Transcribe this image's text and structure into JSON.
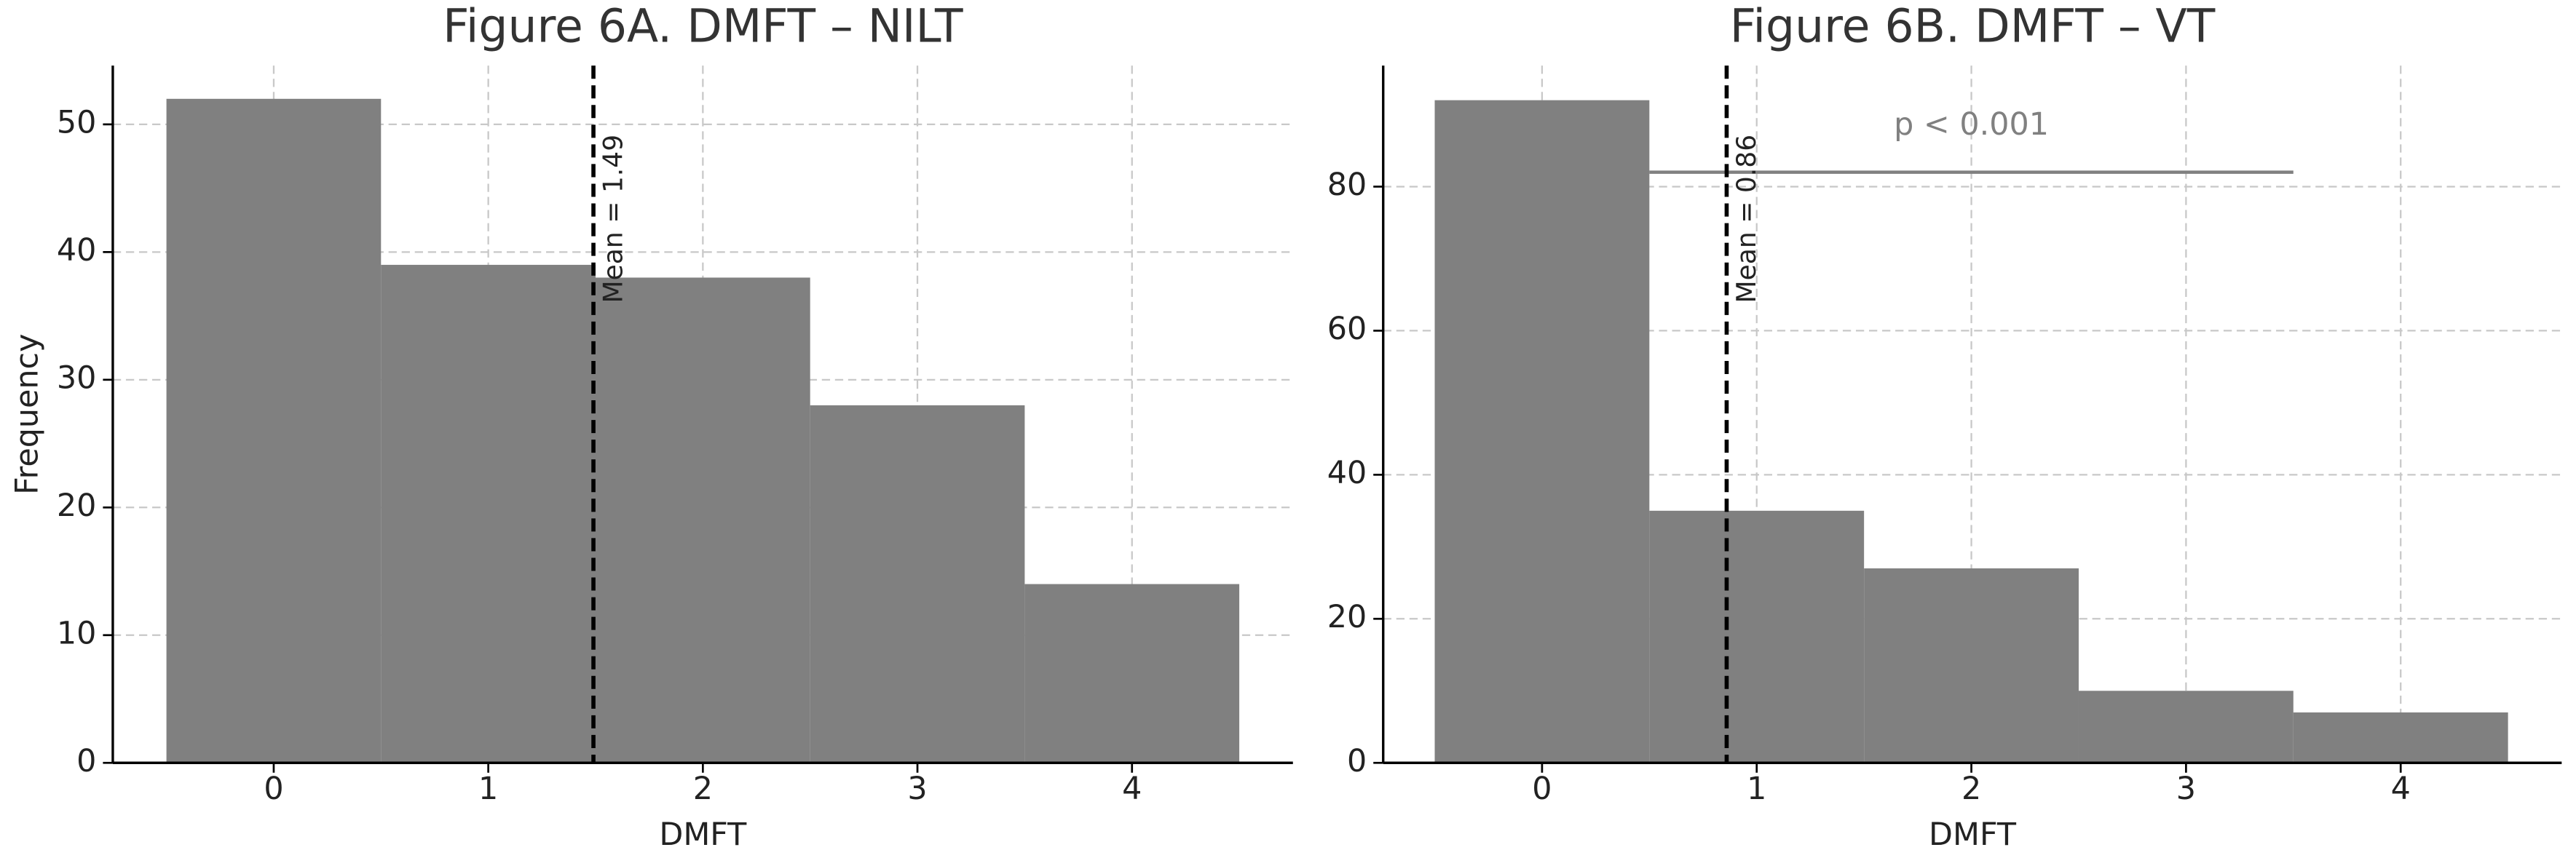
{
  "chart_data": [
    {
      "type": "histogram",
      "title": "Figure 6A. DMFT – NILT",
      "xlabel": "DMFT",
      "ylabel": "Frequency",
      "bins": [
        -0.5,
        0.5,
        1.5,
        2.5,
        3.5,
        4.5
      ],
      "values": [
        52,
        39,
        38,
        28,
        14
      ],
      "color": "#808080",
      "xlim": [
        -0.75,
        4.75
      ],
      "ylim": [
        0,
        54.6
      ],
      "xticks": [
        0,
        1,
        2,
        3,
        4
      ],
      "yticks": [
        0,
        10,
        20,
        30,
        40,
        50
      ],
      "grid": true,
      "mean": 1.49,
      "mean_label": "Mean = 1.49"
    },
    {
      "type": "histogram",
      "title": "Figure 6B. DMFT – VT",
      "xlabel": "DMFT",
      "bins": [
        -0.5,
        0.5,
        1.5,
        2.5,
        3.5,
        4.5
      ],
      "values": [
        92,
        35,
        27,
        10,
        7
      ],
      "color": "#808080",
      "xlim": [
        -0.74,
        4.75
      ],
      "ylim": [
        0,
        96.8
      ],
      "xticks": [
        0,
        1,
        2,
        3,
        4
      ],
      "yticks": [
        0,
        20,
        40,
        60,
        80
      ],
      "grid": true,
      "mean": 0.86,
      "mean_label": "Mean = 0.86",
      "significance": {
        "text": "p < 0.001",
        "x": [
          0.5,
          3.5
        ],
        "y": 82
      }
    }
  ]
}
